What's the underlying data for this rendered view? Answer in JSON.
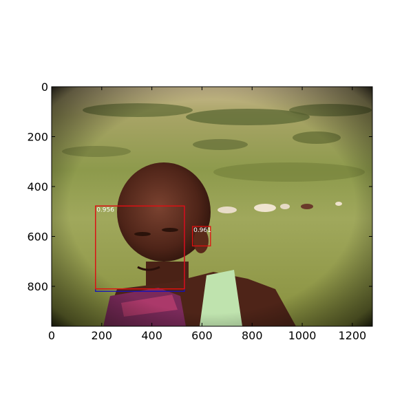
{
  "chart_data": {
    "type": "image",
    "title": "",
    "xlabel": "",
    "ylabel": "",
    "xlim": [
      0,
      1280
    ],
    "ylim": [
      960,
      0
    ],
    "x_ticks": [
      0,
      200,
      400,
      600,
      800,
      1000,
      1200
    ],
    "y_ticks": [
      0,
      200,
      400,
      600,
      800
    ],
    "grid": false,
    "boxes": [
      {
        "x0": 175,
        "y0": 478,
        "x1": 530,
        "y1": 820,
        "color": "#1010c0",
        "label": ""
      },
      {
        "x0": 175,
        "y0": 478,
        "x1": 530,
        "y1": 810,
        "color": "#e01010",
        "label": "0.956"
      },
      {
        "x0": 175,
        "y0": 478,
        "x1": 530,
        "y1": 810,
        "color": "#e01010",
        "label": ""
      },
      {
        "x0": 562,
        "y0": 560,
        "x1": 634,
        "y1": 638,
        "color": "#e01010",
        "label": "0.961"
      }
    ],
    "colors": {
      "sky": "#c8b68a",
      "savanna": "#9aa25a",
      "grass": "#8fa04a",
      "vignette": "#1a1a10",
      "skin": "#5a2e1e",
      "top_garment": "#b8e0a8",
      "cloth": "#7a2a5a"
    }
  }
}
